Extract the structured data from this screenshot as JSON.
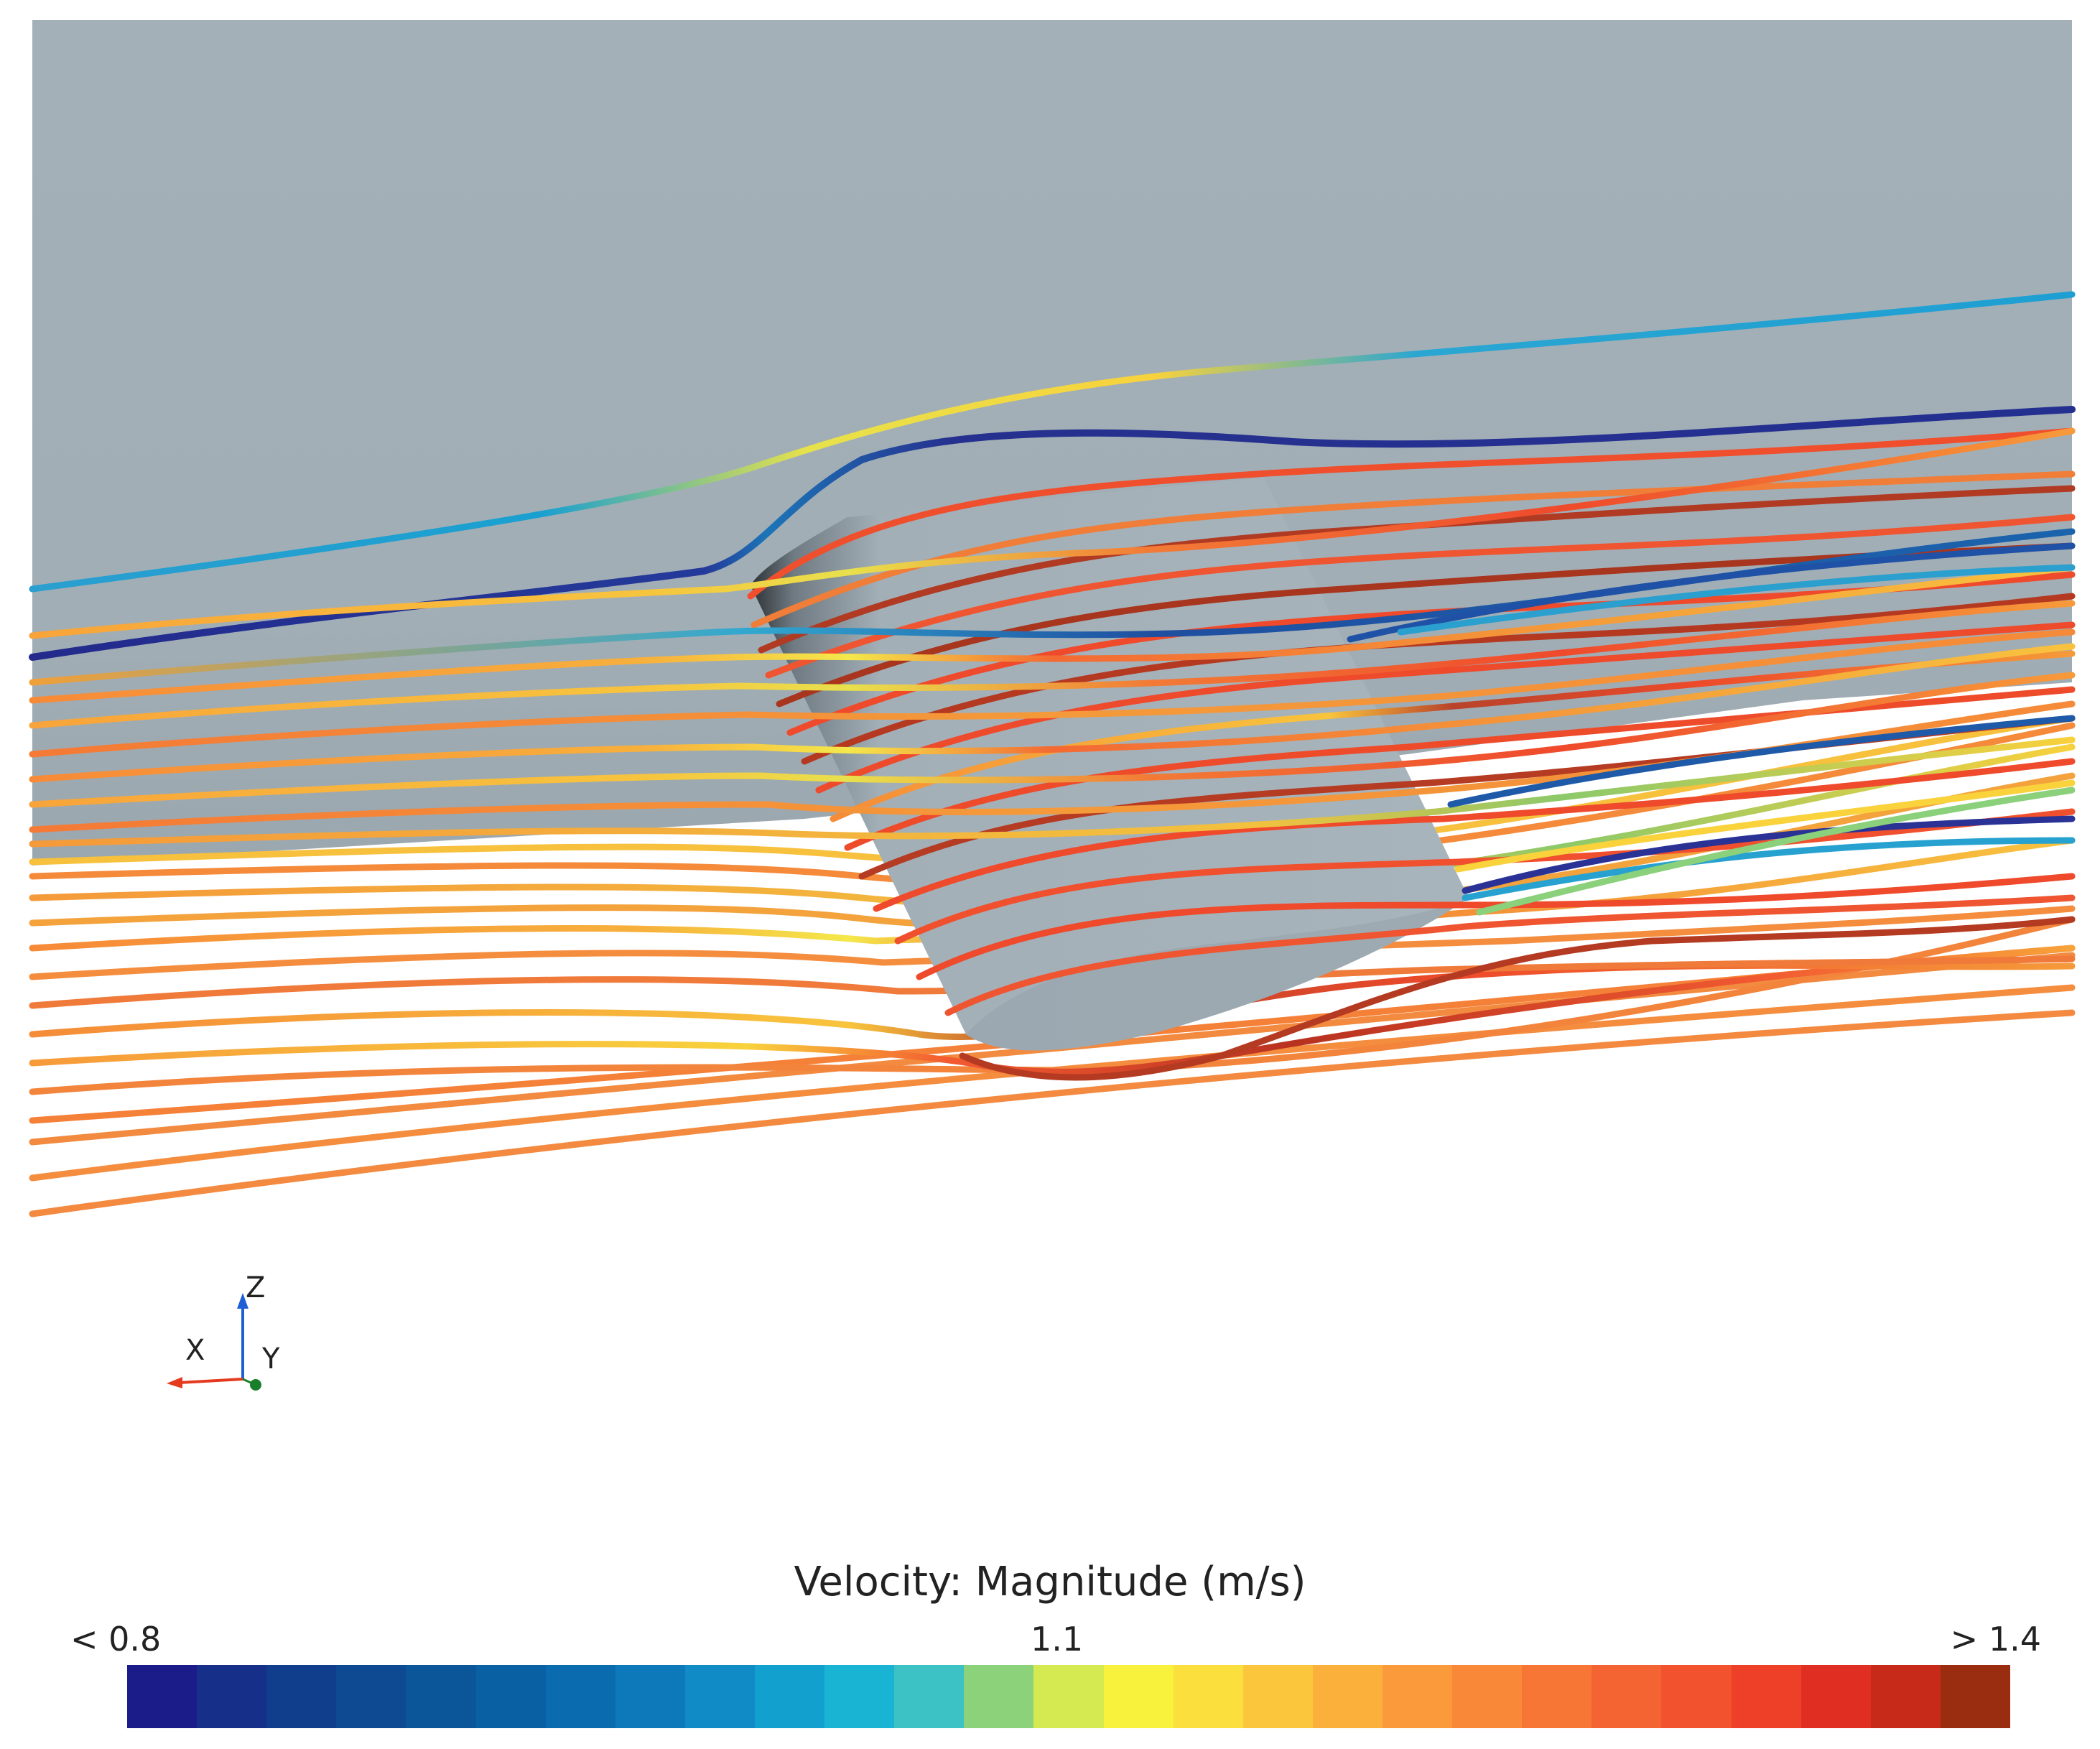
{
  "scene": {
    "background": "#ffffff",
    "channel_color": "#a3afb7",
    "body_color": "#a5b1b9",
    "body_shadow": "#3a3f44"
  },
  "triad": {
    "x_label": "X",
    "y_label": "Y",
    "z_label": "Z",
    "x_color": "#e53a1e",
    "y_color": "#1a7f2a",
    "z_color": "#1f5fd6"
  },
  "legend": {
    "title": "Velocity: Magnitude (m/s)",
    "min_label": "< 0.8",
    "mid_label": "1.1",
    "max_label": "> 1.4",
    "colors": [
      "#1b1b8a",
      "#16308a",
      "#113e8c",
      "#0d4a92",
      "#0b5599",
      "#0960a3",
      "#0a6cae",
      "#0d79ba",
      "#108bc6",
      "#12a0cf",
      "#19b3d3",
      "#3cc1c4",
      "#8bd27a",
      "#d4ea50",
      "#f8f23c",
      "#fbdf3c",
      "#fcc63c",
      "#fbb03b",
      "#fa9a3a",
      "#f98838",
      "#f77636",
      "#f46433",
      "#f2522e",
      "#ee3f28",
      "#e02e22",
      "#c82a1a",
      "#9a2d10"
    ]
  }
}
